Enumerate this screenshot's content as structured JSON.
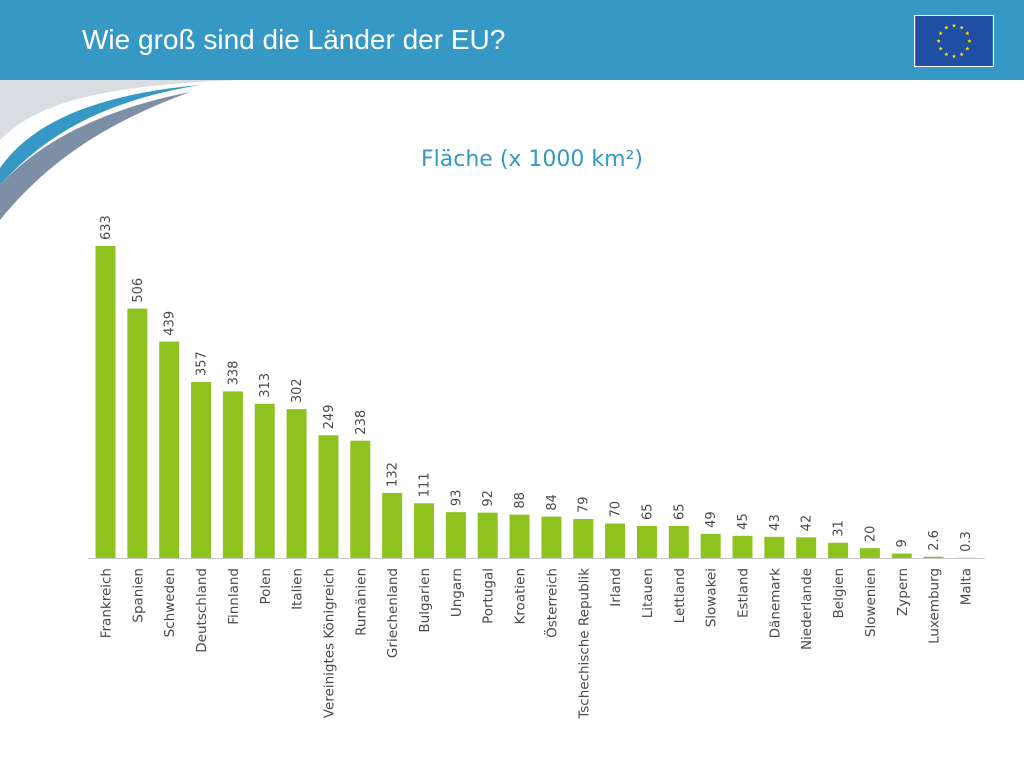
{
  "header": {
    "title": "Wie groß sind die Länder der EU?",
    "background_color": "#3598c5",
    "flag_icon": "eu-flag-icon"
  },
  "chart_data": {
    "type": "bar",
    "title": "Fläche (x 1000 km²)",
    "xlabel": "",
    "ylabel": "",
    "bar_color": "#8ec31f",
    "grid": false,
    "categories": [
      "Frankreich",
      "Spanien",
      "Schweden",
      "Deutschland",
      "Finnland",
      "Polen",
      "Italien",
      "Vereinigtes Königreich",
      "Rumänien",
      "Griechenland",
      "Bulgarien",
      "Ungarn",
      "Portugal",
      "Kroatien",
      "Österreich",
      "Tschechische Republik",
      "Irland",
      "Litauen",
      "Lettland",
      "Slowakei",
      "Estland",
      "Dänemark",
      "Niederlande",
      "Belgien",
      "Slowenien",
      "Zypern",
      "Luxemburg",
      "Malta"
    ],
    "values": [
      633,
      506,
      439,
      357,
      338,
      313,
      302,
      249,
      238,
      132,
      111,
      93,
      92,
      88,
      84,
      79,
      70,
      65,
      65,
      49,
      45,
      43,
      42,
      31,
      20,
      9,
      2.6,
      0.3
    ],
    "value_labels": [
      "633",
      "506",
      "439",
      "357",
      "338",
      "313",
      "302",
      "249",
      "238",
      "132",
      "111",
      "93",
      "92",
      "88",
      "84",
      "79",
      "70",
      "65",
      "65",
      "49",
      "45",
      "43",
      "42",
      "31",
      "20",
      "9",
      "2.6",
      "0.3"
    ]
  }
}
